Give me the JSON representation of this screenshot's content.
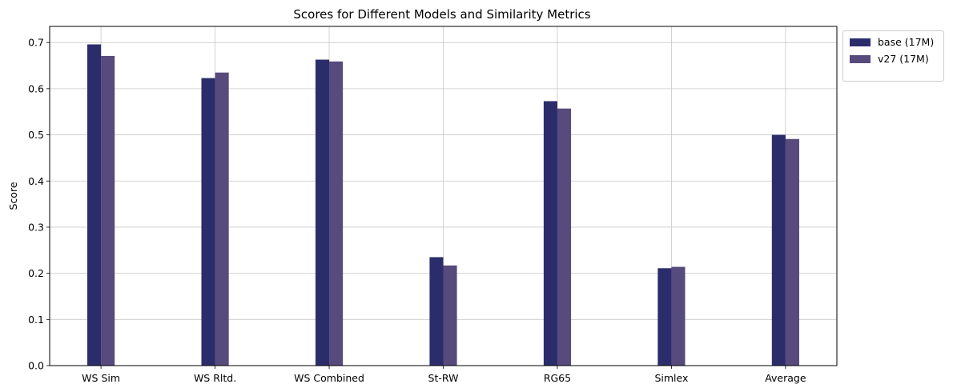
{
  "colors": {
    "base": "#2b2d6b",
    "v27": "#574a7c",
    "grid": "#c8c8c8"
  },
  "chart_data": {
    "type": "bar",
    "title": "Scores for Different Models and Similarity Metrics",
    "xlabel": "",
    "ylabel": "Score",
    "categories": [
      "WS Sim",
      "WS Rltd.",
      "WS Combined",
      "St-RW",
      "RG65",
      "Simlex",
      "Average"
    ],
    "series": [
      {
        "name": "base (17M)",
        "values": [
          0.696,
          0.623,
          0.663,
          0.235,
          0.573,
          0.211,
          0.5
        ]
      },
      {
        "name": "v27 (17M)",
        "values": [
          0.671,
          0.635,
          0.659,
          0.217,
          0.557,
          0.214,
          0.491
        ]
      }
    ],
    "ylim": [
      0,
      0.735
    ],
    "yticks": [
      "0.0",
      "0.1",
      "0.2",
      "0.3",
      "0.4",
      "0.5",
      "0.6",
      "0.7"
    ],
    "grid": true,
    "legend_position": "outside-top-right"
  }
}
